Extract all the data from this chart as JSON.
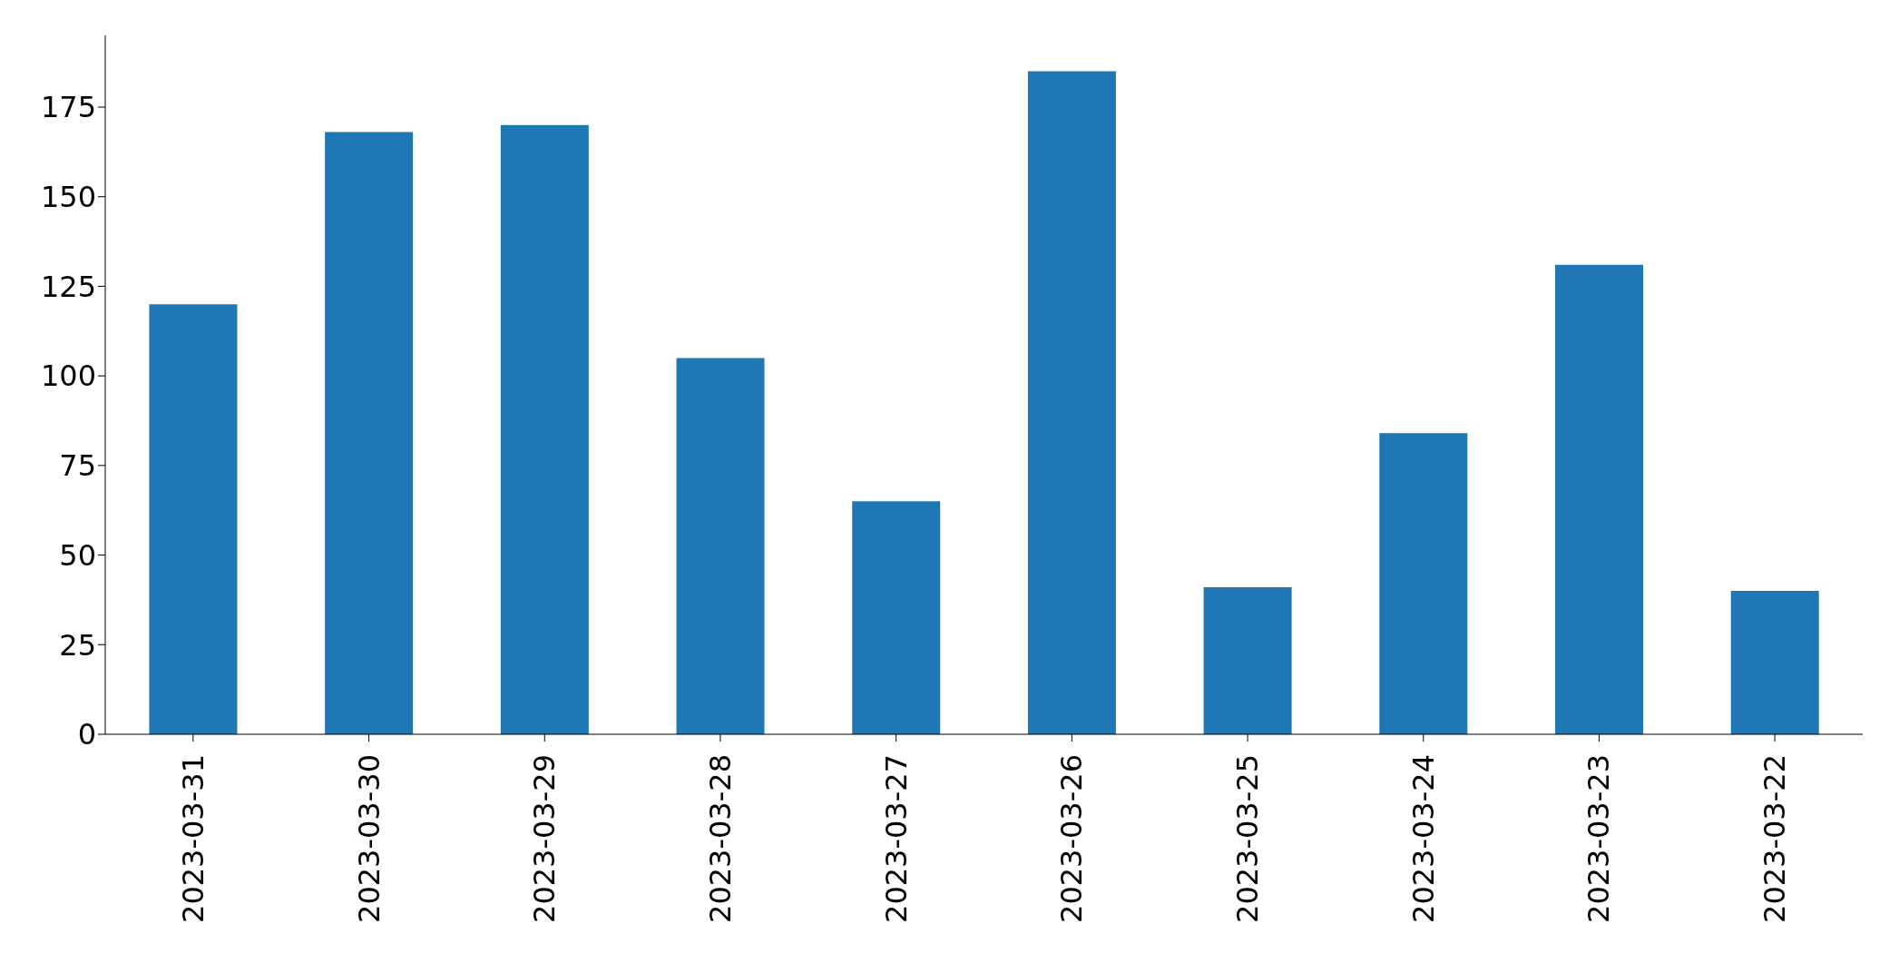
{
  "chart_data": {
    "type": "bar",
    "categories": [
      "2023-03-31",
      "2023-03-30",
      "2023-03-29",
      "2023-03-28",
      "2023-03-27",
      "2023-03-26",
      "2023-03-25",
      "2023-03-24",
      "2023-03-23",
      "2023-03-22"
    ],
    "values": [
      120,
      168,
      170,
      105,
      65,
      185,
      41,
      84,
      131,
      40
    ],
    "color": "#1f77b4",
    "ylim": [
      0,
      195
    ],
    "yticks": [
      0,
      25,
      50,
      75,
      100,
      125,
      150,
      175
    ]
  }
}
